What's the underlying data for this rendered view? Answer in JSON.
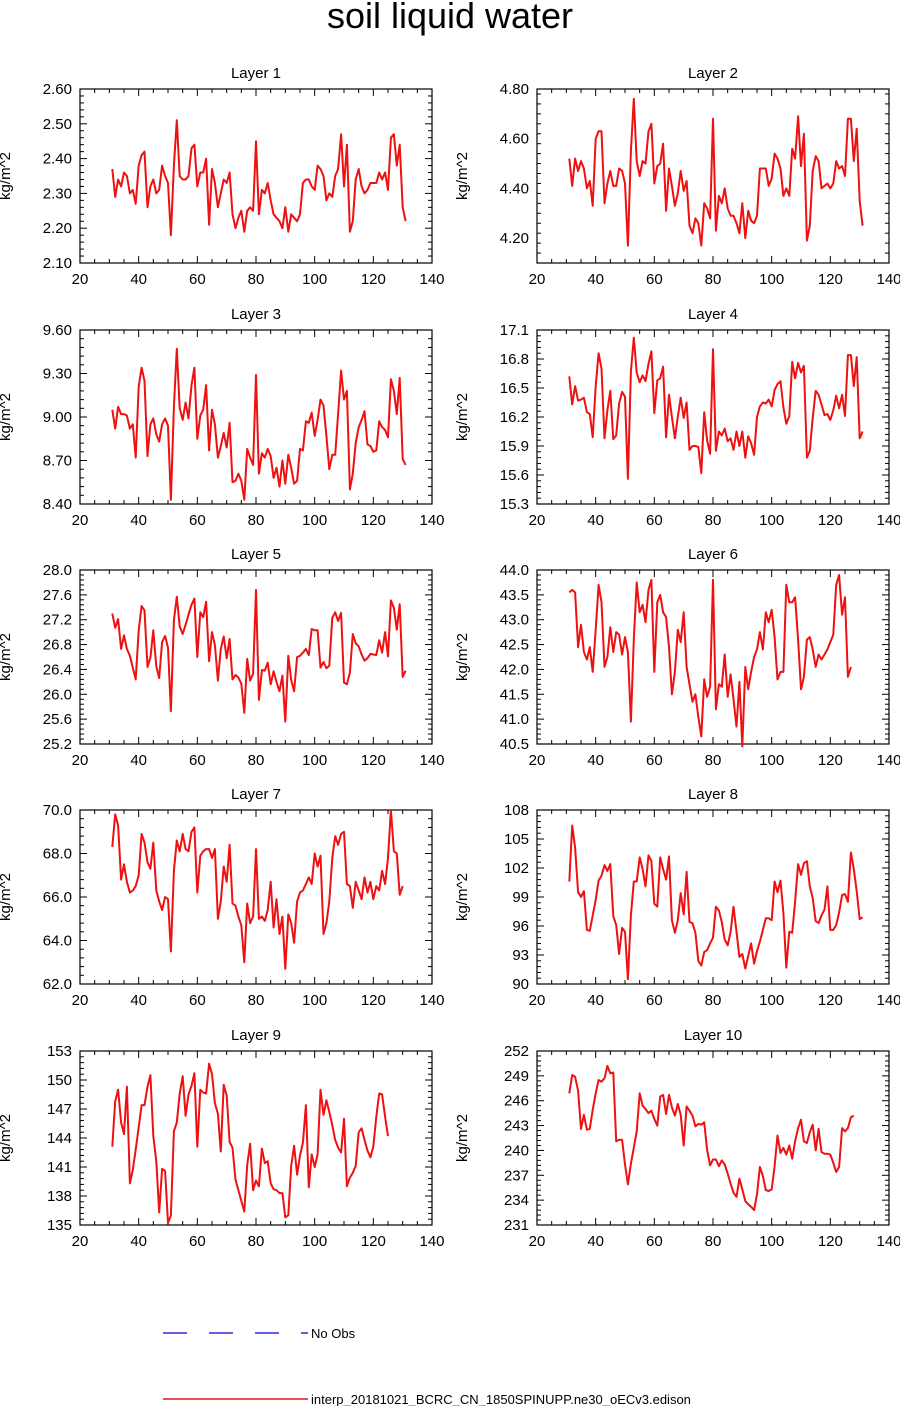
{
  "page_title": "soil liquid water",
  "legend": {
    "obs_label": "No Obs",
    "obs_color": "#2b2bd6",
    "model_label": "interp_20181021_BCRC_CN_1850SPINUPP.ne30_oECv3.edison",
    "model_color": "#ee1111"
  },
  "chart_data": [
    {
      "type": "line",
      "title": "Layer 1",
      "ylabel": "kg/m^2",
      "xlim": [
        20,
        140
      ],
      "xticks": [
        20,
        40,
        60,
        80,
        100,
        120,
        140
      ],
      "ylim": [
        2.1,
        2.6
      ],
      "yticks": [
        "2.10",
        "2.20",
        "2.30",
        "2.40",
        "2.50",
        "2.60"
      ],
      "x_start": 31,
      "x_step": 1,
      "values": [
        2.37,
        2.29,
        2.34,
        2.32,
        2.36,
        2.35,
        2.3,
        2.31,
        2.27,
        2.38,
        2.41,
        2.42,
        2.26,
        2.32,
        2.34,
        2.3,
        2.31,
        2.38,
        2.35,
        2.33,
        2.18,
        2.38,
        2.51,
        2.35,
        2.34,
        2.34,
        2.35,
        2.43,
        2.44,
        2.32,
        2.36,
        2.36,
        2.4,
        2.21,
        2.37,
        2.33,
        2.26,
        2.3,
        2.34,
        2.33,
        2.36,
        2.24,
        2.2,
        2.23,
        2.25,
        2.19,
        2.25,
        2.26,
        2.25,
        2.45,
        2.24,
        2.31,
        2.3,
        2.33,
        2.28,
        2.24,
        2.23,
        2.22,
        2.2,
        2.26,
        2.19,
        2.24,
        2.23,
        2.22,
        2.24,
        2.33,
        2.34,
        2.34,
        2.32,
        2.31,
        2.38,
        2.37,
        2.35,
        2.28,
        2.3,
        2.29,
        2.35,
        2.37,
        2.47,
        2.32,
        2.44,
        2.19,
        2.22,
        2.34,
        2.37,
        2.32,
        2.3,
        2.31,
        2.33,
        2.33,
        2.33,
        2.36,
        2.34,
        2.36,
        2.31,
        2.46,
        2.47,
        2.38,
        2.44,
        2.26,
        2.22
      ]
    },
    {
      "type": "line",
      "title": "Layer 2",
      "ylabel": "kg/m^2",
      "xlim": [
        20,
        140
      ],
      "xticks": [
        20,
        40,
        60,
        80,
        100,
        120,
        140
      ],
      "ylim": [
        4.1,
        4.8
      ],
      "yticks": [
        "4.20",
        "4.40",
        "4.60",
        "4.80"
      ],
      "x_start": 31,
      "x_step": 1,
      "values": [
        4.52,
        4.41,
        4.52,
        4.47,
        4.51,
        4.48,
        4.4,
        4.43,
        4.33,
        4.6,
        4.63,
        4.63,
        4.34,
        4.42,
        4.47,
        4.41,
        4.41,
        4.48,
        4.47,
        4.42,
        4.17,
        4.55,
        4.76,
        4.51,
        4.45,
        4.51,
        4.5,
        4.63,
        4.66,
        4.42,
        4.49,
        4.5,
        4.58,
        4.31,
        4.48,
        4.41,
        4.33,
        4.38,
        4.47,
        4.39,
        4.43,
        4.25,
        4.22,
        4.28,
        4.26,
        4.17,
        4.34,
        4.32,
        4.28,
        4.68,
        4.23,
        4.37,
        4.34,
        4.4,
        4.32,
        4.29,
        4.29,
        4.26,
        4.22,
        4.34,
        4.2,
        4.31,
        4.27,
        4.26,
        4.29,
        4.48,
        4.48,
        4.48,
        4.41,
        4.44,
        4.54,
        4.52,
        4.48,
        4.37,
        4.4,
        4.37,
        4.56,
        4.52,
        4.69,
        4.49,
        4.62,
        4.19,
        4.25,
        4.47,
        4.53,
        4.51,
        4.4,
        4.41,
        4.42,
        4.4,
        4.42,
        4.51,
        4.48,
        4.49,
        4.45,
        4.68,
        4.68,
        4.51,
        4.64,
        4.35,
        4.25
      ]
    },
    {
      "type": "line",
      "title": "Layer 3",
      "ylabel": "kg/m^2",
      "xlim": [
        20,
        140
      ],
      "xticks": [
        20,
        40,
        60,
        80,
        100,
        120,
        140
      ],
      "ylim": [
        8.4,
        9.6
      ],
      "yticks": [
        "8.40",
        "8.70",
        "9.00",
        "9.30",
        "9.60"
      ],
      "x_start": 31,
      "x_step": 1,
      "values": [
        9.05,
        8.92,
        9.07,
        9.02,
        9.02,
        9.01,
        8.92,
        8.95,
        8.72,
        9.21,
        9.34,
        9.25,
        8.73,
        8.95,
        8.99,
        8.88,
        8.83,
        8.95,
        8.99,
        8.94,
        8.43,
        9.07,
        9.47,
        9.06,
        8.98,
        9.1,
        8.99,
        9.22,
        9.34,
        8.85,
        9.01,
        9.05,
        9.22,
        8.77,
        9.05,
        8.95,
        8.72,
        8.8,
        8.89,
        8.79,
        8.96,
        8.55,
        8.56,
        8.61,
        8.56,
        8.43,
        8.78,
        8.72,
        8.67,
        9.29,
        8.61,
        8.75,
        8.72,
        8.78,
        8.73,
        8.58,
        8.65,
        8.52,
        8.7,
        8.54,
        8.74,
        8.65,
        8.54,
        8.56,
        8.78,
        8.77,
        8.97,
        8.96,
        9.03,
        8.87,
        8.98,
        9.12,
        9.08,
        8.87,
        8.64,
        8.74,
        8.74,
        9.02,
        9.32,
        9.12,
        9.18,
        8.5,
        8.61,
        8.82,
        8.93,
        8.98,
        9.04,
        8.81,
        8.8,
        8.76,
        8.77,
        8.97,
        8.93,
        8.91,
        8.86,
        9.26,
        9.18,
        9.02,
        9.27,
        8.71,
        8.67
      ]
    },
    {
      "type": "line",
      "title": "Layer 4",
      "ylabel": "kg/m^2",
      "xlim": [
        20,
        140
      ],
      "xticks": [
        20,
        40,
        60,
        80,
        100,
        120,
        140
      ],
      "ylim": [
        15.3,
        17.1
      ],
      "yticks": [
        "15.3",
        "15.6",
        "15.9",
        "16.2",
        "16.5",
        "16.8",
        "17.1"
      ],
      "x_start": 31,
      "x_step": 1,
      "values": [
        16.62,
        16.33,
        16.52,
        16.37,
        16.38,
        16.4,
        16.25,
        16.23,
        15.99,
        16.52,
        16.86,
        16.7,
        15.98,
        16.27,
        16.47,
        15.97,
        16.01,
        16.34,
        16.46,
        16.41,
        15.56,
        16.67,
        17.02,
        16.66,
        16.56,
        16.63,
        16.57,
        16.75,
        16.88,
        16.24,
        16.58,
        16.6,
        16.72,
        15.99,
        16.43,
        16.2,
        15.98,
        16.2,
        16.4,
        16.19,
        16.35,
        15.86,
        15.9,
        15.9,
        15.89,
        15.62,
        16.25,
        15.96,
        15.82,
        16.9,
        15.85,
        16.05,
        16.01,
        16.08,
        15.95,
        15.98,
        15.86,
        16.05,
        15.9,
        16.05,
        15.78,
        16.0,
        15.93,
        15.81,
        16.2,
        16.31,
        16.35,
        16.34,
        16.38,
        16.31,
        16.48,
        16.54,
        16.57,
        16.3,
        16.13,
        16.21,
        16.77,
        16.6,
        16.76,
        16.66,
        16.73,
        15.78,
        15.85,
        16.19,
        16.47,
        16.43,
        16.33,
        16.22,
        16.23,
        16.17,
        16.27,
        16.42,
        16.29,
        16.43,
        16.21,
        16.84,
        16.84,
        16.52,
        16.82,
        15.98,
        16.05
      ]
    },
    {
      "type": "line",
      "title": "Layer 5",
      "ylabel": "kg/m^2",
      "xlim": [
        20,
        140
      ],
      "xticks": [
        20,
        40,
        60,
        80,
        100,
        120,
        140
      ],
      "ylim": [
        25.2,
        28.0
      ],
      "yticks": [
        "25.2",
        "25.6",
        "26.0",
        "26.4",
        "26.8",
        "27.2",
        "27.6",
        "28.0"
      ],
      "x_start": 31,
      "x_step": 1,
      "values": [
        27.3,
        27.07,
        27.21,
        26.73,
        26.95,
        26.73,
        26.62,
        26.43,
        26.24,
        27.03,
        27.42,
        27.35,
        26.44,
        26.59,
        27.03,
        26.45,
        26.26,
        26.84,
        26.94,
        26.75,
        25.73,
        27.19,
        27.57,
        27.09,
        26.97,
        27.12,
        27.28,
        27.44,
        27.54,
        26.6,
        27.32,
        27.24,
        27.49,
        26.53,
        27.0,
        26.79,
        26.22,
        26.73,
        26.93,
        26.58,
        26.89,
        26.24,
        26.31,
        26.27,
        26.17,
        25.7,
        26.57,
        26.22,
        26.33,
        27.68,
        25.91,
        26.39,
        26.38,
        26.51,
        26.16,
        26.37,
        26.2,
        26.05,
        26.3,
        25.56,
        26.62,
        26.23,
        26.05,
        26.6,
        26.62,
        26.67,
        26.73,
        26.63,
        27.05,
        27.03,
        27.03,
        26.43,
        26.52,
        26.42,
        26.46,
        27.23,
        27.32,
        27.18,
        27.31,
        26.19,
        26.16,
        26.35,
        26.97,
        26.82,
        26.77,
        26.64,
        26.54,
        26.58,
        26.65,
        26.64,
        26.63,
        26.87,
        26.67,
        27.0,
        26.61,
        27.51,
        27.39,
        27.04,
        27.45,
        26.28,
        26.38
      ]
    },
    {
      "type": "line",
      "title": "Layer 6",
      "ylabel": "kg/m^2",
      "xlim": [
        20,
        140
      ],
      "xticks": [
        20,
        40,
        60,
        80,
        100,
        120,
        140
      ],
      "ylim": [
        40.5,
        44.0
      ],
      "yticks": [
        "40.5",
        "41.0",
        "41.5",
        "42.0",
        "42.5",
        "43.0",
        "43.5",
        "44.0"
      ],
      "x_start": 31,
      "x_step": 1,
      "values": [
        43.55,
        43.6,
        43.55,
        42.45,
        42.9,
        42.35,
        42.2,
        42.45,
        41.95,
        42.8,
        43.7,
        43.35,
        42.05,
        42.25,
        42.85,
        42.35,
        42.75,
        42.7,
        42.3,
        42.65,
        42.35,
        40.95,
        42.6,
        43.75,
        43.15,
        43.3,
        42.95,
        43.6,
        43.8,
        41.95,
        43.35,
        43.5,
        43.15,
        43.05,
        42.45,
        41.5,
        41.95,
        42.8,
        42.55,
        43.15,
        42.05,
        41.7,
        41.35,
        41.5,
        41.05,
        40.65,
        41.8,
        41.45,
        41.65,
        43.8,
        41.2,
        41.7,
        41.65,
        42.3,
        41.45,
        41.9,
        41.4,
        40.85,
        41.75,
        40.45,
        42.05,
        41.6,
        41.95,
        42.25,
        42.4,
        42.75,
        42.4,
        43.15,
        42.95,
        43.2,
        42.65,
        41.8,
        41.95,
        41.95,
        43.7,
        43.35,
        43.35,
        43.45,
        42.6,
        41.6,
        41.85,
        42.6,
        42.65,
        42.4,
        42.05,
        42.3,
        42.2,
        42.3,
        42.4,
        42.55,
        42.7,
        43.7,
        43.9,
        43.1,
        43.45,
        41.85,
        42.05
      ]
    },
    {
      "type": "line",
      "title": "Layer 7",
      "ylabel": "kg/m^2",
      "xlim": [
        20,
        140
      ],
      "xticks": [
        20,
        40,
        60,
        80,
        100,
        120,
        140
      ],
      "ylim": [
        62.0,
        70.0
      ],
      "yticks": [
        "62.0",
        "64.0",
        "66.0",
        "68.0",
        "70.0"
      ],
      "x_start": 31,
      "x_step": 1,
      "values": [
        68.3,
        69.8,
        69.3,
        66.8,
        67.5,
        66.7,
        66.2,
        66.3,
        66.5,
        67.0,
        68.9,
        68.5,
        67.6,
        67.3,
        68.5,
        66.3,
        65.8,
        65.4,
        66.0,
        65.9,
        63.5,
        67.2,
        68.6,
        68.1,
        68.9,
        68.2,
        68.1,
        69.0,
        69.2,
        66.2,
        67.9,
        68.1,
        68.2,
        68.2,
        67.8,
        68.2,
        65.0,
        65.8,
        67.4,
        66.7,
        68.4,
        65.7,
        65.6,
        65.1,
        64.7,
        63.0,
        65.7,
        64.8,
        65.1,
        68.2,
        65.0,
        65.1,
        64.9,
        65.4,
        66.7,
        64.6,
        65.9,
        64.3,
        65.1,
        62.7,
        65.2,
        64.8,
        63.9,
        65.8,
        66.2,
        66.3,
        66.6,
        66.9,
        66.6,
        68.0,
        67.4,
        67.9,
        64.3,
        64.8,
        65.8,
        67.8,
        68.8,
        68.4,
        68.9,
        69.0,
        66.6,
        66.5,
        65.5,
        66.7,
        66.3,
        65.9,
        66.9,
        66.2,
        66.7,
        65.9,
        66.5,
        66.3,
        67.2,
        66.6,
        67.8,
        70.0,
        68.1,
        68.0,
        66.1,
        66.5
      ]
    },
    {
      "type": "line",
      "title": "Layer 8",
      "ylabel": "kg/m^2",
      "xlim": [
        20,
        140
      ],
      "xticks": [
        20,
        40,
        60,
        80,
        100,
        120,
        140
      ],
      "ylim": [
        90,
        108
      ],
      "yticks": [
        "90",
        "93",
        "96",
        "99",
        "102",
        "105",
        "108"
      ],
      "x_start": 31,
      "x_step": 1,
      "values": [
        100.6,
        106.4,
        104.1,
        99.5,
        99.0,
        99.6,
        95.6,
        95.5,
        97.1,
        98.7,
        100.7,
        101.2,
        102.3,
        101.7,
        102.4,
        97.0,
        96.1,
        93.1,
        95.8,
        95.4,
        90.5,
        97.1,
        100.6,
        100.6,
        103.1,
        101.9,
        100.1,
        103.3,
        102.7,
        98.3,
        98.0,
        103.1,
        101.9,
        100.8,
        103.2,
        96.6,
        95.3,
        96.6,
        99.4,
        97.2,
        101.6,
        96.4,
        96.3,
        95.3,
        92.4,
        91.9,
        93.3,
        93.5,
        94.2,
        94.8,
        98.0,
        97.6,
        96.4,
        94.6,
        94.0,
        95.4,
        98.0,
        95.4,
        92.8,
        93.1,
        91.6,
        92.9,
        94.2,
        92.1,
        93.4,
        94.4,
        95.6,
        96.8,
        96.8,
        96.6,
        100.6,
        99.5,
        100.7,
        97.3,
        91.7,
        95.4,
        95.3,
        98.5,
        102.4,
        101.3,
        102.5,
        102.7,
        100.1,
        98.9,
        96.5,
        96.3,
        97.1,
        97.7,
        100.1,
        95.6,
        95.6,
        96.1,
        97.4,
        99.2,
        99.3,
        98.5,
        103.6,
        101.9,
        99.6,
        96.7,
        96.9
      ]
    },
    {
      "type": "line",
      "title": "Layer 9",
      "ylabel": "kg/m^2",
      "xlim": [
        20,
        140
      ],
      "xticks": [
        20,
        40,
        60,
        80,
        100,
        120,
        140
      ],
      "ylim": [
        135,
        153
      ],
      "yticks": [
        "135",
        "138",
        "141",
        "144",
        "147",
        "150",
        "153"
      ],
      "x_start": 31,
      "x_step": 1,
      "values": [
        143.1,
        147.8,
        149.0,
        145.6,
        144.4,
        149.3,
        139.3,
        140.7,
        142.8,
        145.1,
        147.4,
        147.4,
        149.3,
        150.5,
        144.2,
        141.6,
        136.3,
        140.8,
        140.6,
        135.2,
        136.0,
        144.7,
        145.6,
        148.6,
        150.4,
        146.3,
        148.5,
        149.4,
        150.7,
        143.1,
        149.0,
        148.7,
        148.6,
        151.7,
        150.6,
        147.6,
        146.5,
        142.6,
        149.5,
        148.4,
        143.6,
        143.0,
        139.7,
        138.6,
        137.5,
        136.4,
        141.2,
        143.4,
        138.6,
        139.6,
        139.0,
        142.9,
        141.4,
        141.6,
        139.3,
        138.7,
        138.6,
        138.3,
        138.3,
        135.8,
        136.0,
        141.1,
        143.2,
        140.2,
        142.2,
        143.5,
        147.4,
        138.9,
        142.3,
        141.0,
        142.3,
        149.0,
        146.4,
        147.9,
        146.7,
        145.3,
        143.8,
        143.0,
        142.5,
        146.0,
        139.0,
        139.9,
        140.4,
        141.1,
        144.6,
        145.0,
        143.8,
        142.7,
        142.0,
        143.1,
        146.2,
        148.6,
        148.5,
        146.2,
        144.2
      ]
    },
    {
      "type": "line",
      "title": "Layer 10",
      "ylabel": "kg/m^2",
      "xlim": [
        20,
        140
      ],
      "xticks": [
        20,
        40,
        60,
        80,
        100,
        120,
        140
      ],
      "ylim": [
        231,
        252
      ],
      "yticks": [
        "231",
        "234",
        "237",
        "240",
        "243",
        "246",
        "249",
        "252"
      ],
      "x_start": 31,
      "x_step": 1,
      "values": [
        246.9,
        249.1,
        248.9,
        247.2,
        242.6,
        244.3,
        242.5,
        242.6,
        244.9,
        246.9,
        248.5,
        248.3,
        248.7,
        250.2,
        249.3,
        249.4,
        241.1,
        241.3,
        241.3,
        238.3,
        235.9,
        238.4,
        240.3,
        242.3,
        246.9,
        245.4,
        245.0,
        244.5,
        244.8,
        243.8,
        243.0,
        246.5,
        246.7,
        244.4,
        246.7,
        245.2,
        244.2,
        245.6,
        244.3,
        240.6,
        245.3,
        244.8,
        244.2,
        242.9,
        243.2,
        243.1,
        243.4,
        240.1,
        238.2,
        238.9,
        238.9,
        238.1,
        238.8,
        238.3,
        237.2,
        236.0,
        234.9,
        234.4,
        236.6,
        235.3,
        233.9,
        233.5,
        233.2,
        232.8,
        234.7,
        238.0,
        236.9,
        235.2,
        235.1,
        235.3,
        238.1,
        241.8,
        239.7,
        240.3,
        239.5,
        240.6,
        239.0,
        241.1,
        242.7,
        243.7,
        241.1,
        240.9,
        242.2,
        243.1,
        240.0,
        242.6,
        239.8,
        239.6,
        239.6,
        239.5,
        238.5,
        237.4,
        238.0,
        242.7,
        242.3,
        242.7,
        244.0,
        244.2
      ]
    }
  ]
}
